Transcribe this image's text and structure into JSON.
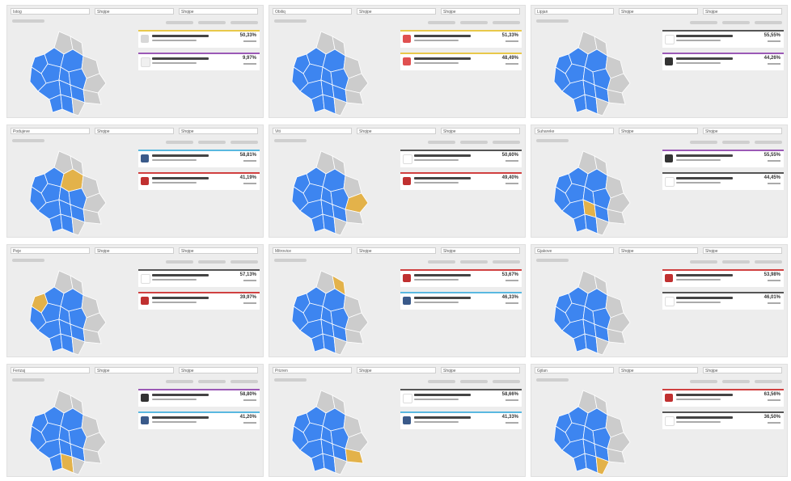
{
  "colors": {
    "won": "#3d85f0",
    "other": "#cccccc",
    "highlight": "#e3b24a",
    "border": "#ffffff"
  },
  "panels": [
    {
      "selects": [
        "Istog",
        "Shqipe",
        "Shqipe"
      ],
      "highlight": null,
      "cards": [
        {
          "color": "#e8c84a",
          "logo": "#d8d8d8",
          "logo_icon": "circle-logo-icon",
          "pct": "50,33%"
        },
        {
          "color": "#9b59b6",
          "logo": "#f0f0f0",
          "logo_icon": "blank-logo-icon",
          "pct": "9,97%"
        }
      ]
    },
    {
      "selects": [
        "Obiliq",
        "Shqipe",
        "Shqipe"
      ],
      "highlight": null,
      "cards": [
        {
          "color": "#e8c84a",
          "logo": "#e05050",
          "logo_icon": "round-logo-icon",
          "pct": "51,33%"
        },
        {
          "color": "#e8c84a",
          "logo": "#e05050",
          "logo_icon": "round-logo-icon",
          "pct": "48,49%"
        }
      ]
    },
    {
      "selects": [
        "Lipjan",
        "Shqipe",
        "Shqipe"
      ],
      "highlight": null,
      "cards": [
        {
          "color": "#555555",
          "logo": "#ffffff",
          "logo_icon": "ldk-logo-icon",
          "pct": "55,55%"
        },
        {
          "color": "#9b59b6",
          "logo": "#333333",
          "logo_icon": "dark-round-logo-icon",
          "pct": "44,26%"
        }
      ]
    },
    {
      "selects": [
        "Podujeve",
        "Shqipe",
        "Shqipe"
      ],
      "highlight": 0,
      "cards": [
        {
          "color": "#59b8e0",
          "logo": "#3a5a8a",
          "logo_icon": "square-logo-icon",
          "pct": "58,81%"
        },
        {
          "color": "#d04040",
          "logo": "#c03030",
          "logo_icon": "v-logo-icon",
          "pct": "41,19%"
        }
      ]
    },
    {
      "selects": [
        "Viti",
        "Shqipe",
        "Shqipe"
      ],
      "highlight": 1,
      "cards": [
        {
          "color": "#555555",
          "logo": "#ffffff",
          "logo_icon": "ldk-logo-icon",
          "pct": "50,60%"
        },
        {
          "color": "#d04040",
          "logo": "#c03030",
          "logo_icon": "v-logo-icon",
          "pct": "49,40%"
        }
      ]
    },
    {
      "selects": [
        "Suhareke",
        "Shqipe",
        "Shqipe"
      ],
      "highlight": 2,
      "cards": [
        {
          "color": "#9b59b6",
          "logo": "#333333",
          "logo_icon": "dark-round-logo-icon",
          "pct": "55,55%"
        },
        {
          "color": "#555555",
          "logo": "#ffffff",
          "logo_icon": "ldk-logo-icon",
          "pct": "44,45%"
        }
      ]
    },
    {
      "selects": [
        "Peje",
        "Shqipe",
        "Shqipe"
      ],
      "highlight": 3,
      "cards": [
        {
          "color": "#555555",
          "logo": "#ffffff",
          "logo_icon": "ldk-logo-icon",
          "pct": "57,13%"
        },
        {
          "color": "#d04040",
          "logo": "#c03030",
          "logo_icon": "v-logo-icon",
          "pct": "39,97%"
        }
      ]
    },
    {
      "selects": [
        "Mitrovice",
        "Shqipe",
        "Shqipe"
      ],
      "highlight": 4,
      "cards": [
        {
          "color": "#d04040",
          "logo": "#c03030",
          "logo_icon": "v-logo-icon",
          "pct": "53,67%"
        },
        {
          "color": "#59b8e0",
          "logo": "#3a5a8a",
          "logo_icon": "square-logo-icon",
          "pct": "46,33%"
        }
      ]
    },
    {
      "selects": [
        "Gjakove",
        "Shqipe",
        "Shqipe"
      ],
      "highlight": null,
      "cards": [
        {
          "color": "#d04040",
          "logo": "#c03030",
          "logo_icon": "v-logo-icon",
          "pct": "53,98%"
        },
        {
          "color": "#555555",
          "logo": "#ffffff",
          "logo_icon": "ldk-logo-icon",
          "pct": "46,01%"
        }
      ]
    },
    {
      "selects": [
        "Ferizaj",
        "Shqipe",
        "Shqipe"
      ],
      "highlight": 5,
      "cards": [
        {
          "color": "#9b59b6",
          "logo": "#333333",
          "logo_icon": "dark-round-logo-icon",
          "pct": "58,80%"
        },
        {
          "color": "#59b8e0",
          "logo": "#3a5a8a",
          "logo_icon": "square-logo-icon",
          "pct": "41,20%"
        }
      ]
    },
    {
      "selects": [
        "Prizren",
        "Shqipe",
        "Shqipe"
      ],
      "highlight": 6,
      "cards": [
        {
          "color": "#555555",
          "logo": "#ffffff",
          "logo_icon": "ldk-logo-icon",
          "pct": "58,66%"
        },
        {
          "color": "#59b8e0",
          "logo": "#3a5a8a",
          "logo_icon": "square-logo-icon",
          "pct": "41,33%"
        }
      ]
    },
    {
      "selects": [
        "Gjilan",
        "Shqipe",
        "Shqipe"
      ],
      "highlight": 7,
      "cards": [
        {
          "color": "#d04040",
          "logo": "#c03030",
          "logo_icon": "v-logo-icon",
          "pct": "63,56%"
        },
        {
          "color": "#555555",
          "logo": "#ffffff",
          "logo_icon": "ldk-logo-icon",
          "pct": "36,50%"
        }
      ]
    }
  ]
}
